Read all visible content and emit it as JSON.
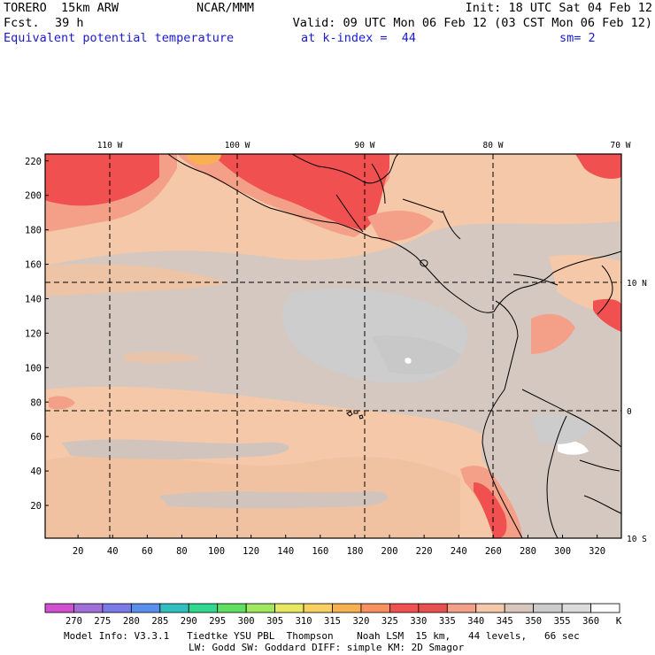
{
  "header": {
    "model_name": "TORERO  15km ARW",
    "center": "NCAR/MMM",
    "init": "Init: 18 UTC Sat 04 Feb 12",
    "fcst_label": "Fcst.",
    "fcst_hours": "39 h",
    "valid": "Valid: 09 UTC Mon 06 Feb 12 (03 CST Mon 06 Feb 12)",
    "field": "Equivalent potential temperature",
    "level": "at k-index =  44",
    "smooth": "sm= 2"
  },
  "map": {
    "lon_labels": [
      "110 W",
      "100 W",
      "90 W",
      "80 W",
      "70 W"
    ],
    "lat_labels": [
      "10 N",
      "0",
      "10 S"
    ],
    "y_ticks": [
      "220",
      "200",
      "180",
      "160",
      "140",
      "120",
      "100",
      "80",
      "60",
      "40",
      "20"
    ],
    "x_ticks": [
      "20",
      "40",
      "60",
      "80",
      "100",
      "120",
      "140",
      "160",
      "180",
      "200",
      "220",
      "240",
      "260",
      "280",
      "300",
      "320"
    ],
    "grid_y": [
      1,
      224
    ],
    "grid_x": [
      1,
      334
    ]
  },
  "colorbar": {
    "labels": [
      "270",
      "275",
      "280",
      "285",
      "290",
      "295",
      "300",
      "305",
      "310",
      "315",
      "320",
      "325",
      "330",
      "335",
      "340",
      "345",
      "350",
      "355",
      "360"
    ],
    "unit": "K",
    "colors": [
      "#d050d0",
      "#a070d8",
      "#7a7ae8",
      "#5a8ff0",
      "#30c0c0",
      "#30d890",
      "#60e060",
      "#a0e860",
      "#e8e860",
      "#f8d060",
      "#f8b050",
      "#f89060",
      "#f05050",
      "#e85050",
      "#f4a088",
      "#f4c8a8",
      "#d8c8bc",
      "#cccccc",
      "#dcdcdc",
      "#ffffff"
    ]
  },
  "footer": {
    "line1": "Model Info: V3.3.1   Tiedtke YSU PBL  Thompson    Noah LSM  15 km,   44 levels,   66 sec",
    "line2": "LW: Godd SW: Goddard DIFF: simple KM: 2D Smagor"
  }
}
